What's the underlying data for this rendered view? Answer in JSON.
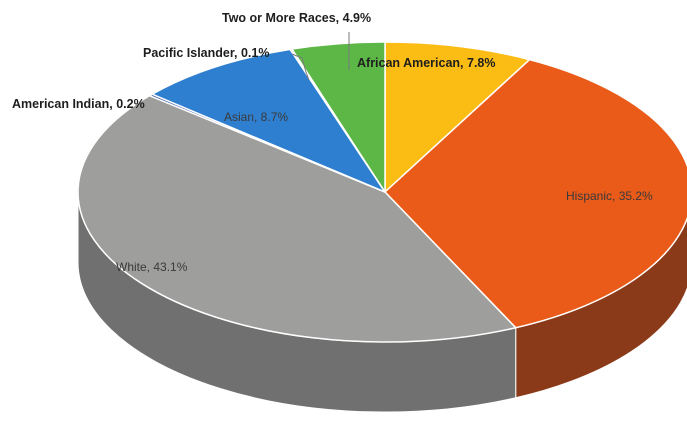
{
  "chart_data": {
    "type": "pie",
    "title": "",
    "slices": [
      {
        "name": "African American",
        "value": 7.8,
        "label": "African American, 7.8%",
        "color": "#fbbc14",
        "side": "#b88a0e"
      },
      {
        "name": "Hispanic",
        "value": 35.2,
        "label": "Hispanic, 35.2%",
        "color": "#ea5a18",
        "side": "#8a3a18"
      },
      {
        "name": "White",
        "value": 43.1,
        "label": "White, 43.1%",
        "color": "#9e9e9c",
        "side": "#707070"
      },
      {
        "name": "American Indian",
        "value": 0.2,
        "label": "American Indian, 0.2%",
        "color": "#2c4fa0",
        "side": "#1d3572"
      },
      {
        "name": "Asian",
        "value": 8.7,
        "label": "Asian, 8.7%",
        "color": "#2f7fd0",
        "side": "#1f5a96"
      },
      {
        "name": "Pacific Islander",
        "value": 0.1,
        "label": "Pacific Islander, 0.1%",
        "color": "#6a2a7a",
        "side": "#4a1d56"
      },
      {
        "name": "Two or More Races",
        "value": 4.9,
        "label": "Two or More Races, 4.9%",
        "color": "#5cb746",
        "side": "#3d7f2e"
      }
    ]
  }
}
